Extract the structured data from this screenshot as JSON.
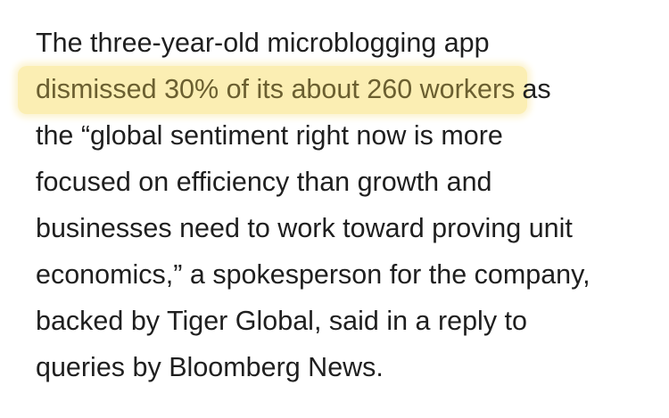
{
  "paragraph": {
    "lines": [
      {
        "text": "The three-year-old microblogging app"
      },
      {
        "highlight": "dismissed 30% of its about 260 workers",
        "text": "as"
      },
      {
        "text": "the “global sentiment right now is more"
      },
      {
        "text": "focused on efficiency than growth and"
      },
      {
        "text": "businesses need to work toward proving unit"
      },
      {
        "text": "economics,” a spokesperson for the company,"
      },
      {
        "text": "backed by Tiger Global, said in a reply to"
      },
      {
        "text": "queries by Bloomberg News."
      }
    ]
  }
}
